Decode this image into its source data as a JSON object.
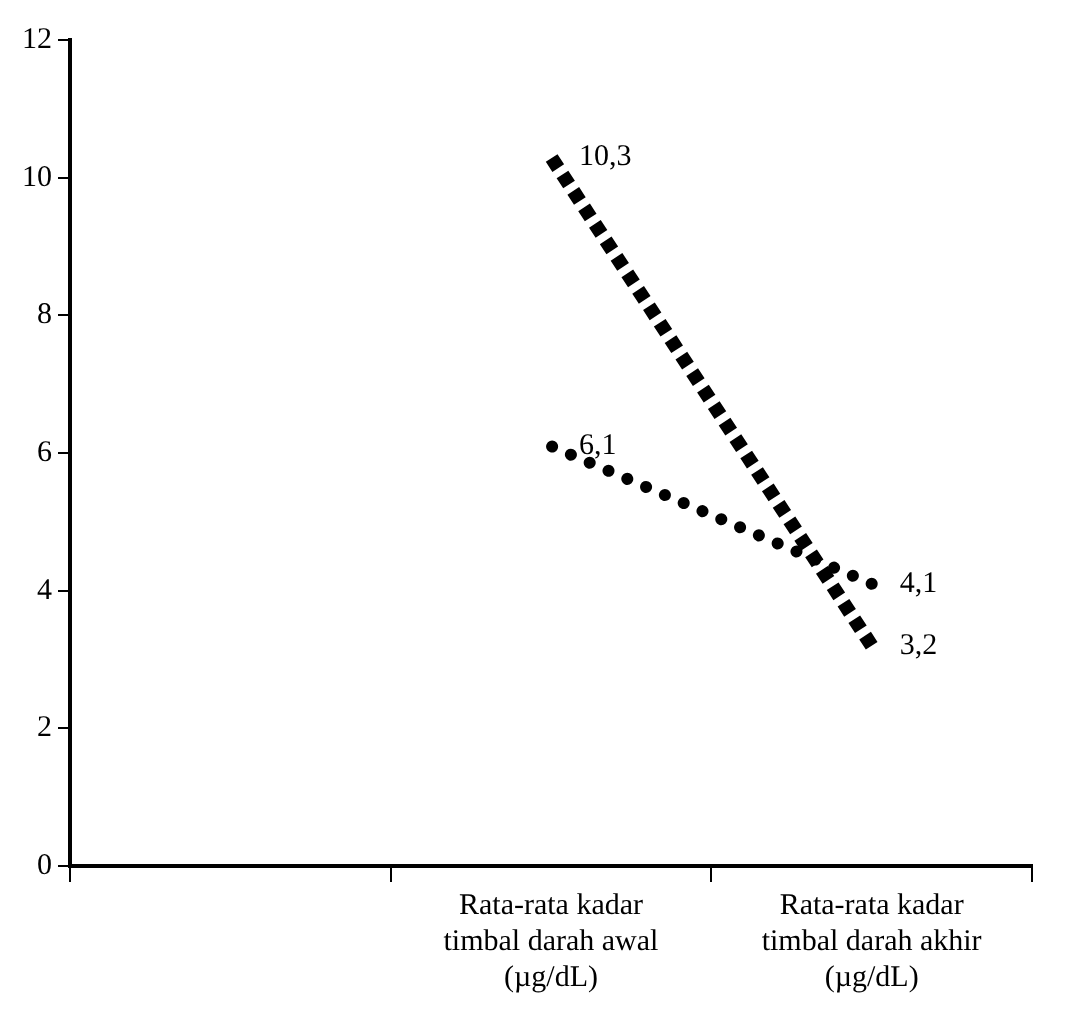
{
  "chart_data": {
    "type": "line",
    "categories": [
      null,
      "Rata-rata kadar timbal darah awal (µg/dL)",
      "Rata-rata kadar timbal darah akhir (µg/dL)"
    ],
    "series": [
      {
        "color": "#000000",
        "line_style": "dashed",
        "values": [
          null,
          10.3,
          3.2
        ],
        "value_labels": [
          null,
          "10,3",
          "3,2"
        ]
      },
      {
        "color": "#000000",
        "line_style": "dotted",
        "values": [
          null,
          6.1,
          4.1
        ],
        "value_labels": [
          null,
          "6,1",
          "4,1"
        ]
      }
    ],
    "ylim": [
      0,
      12
    ],
    "yticks": [
      0,
      2,
      4,
      6,
      8,
      10,
      12
    ],
    "grid": false,
    "legend": false
  }
}
